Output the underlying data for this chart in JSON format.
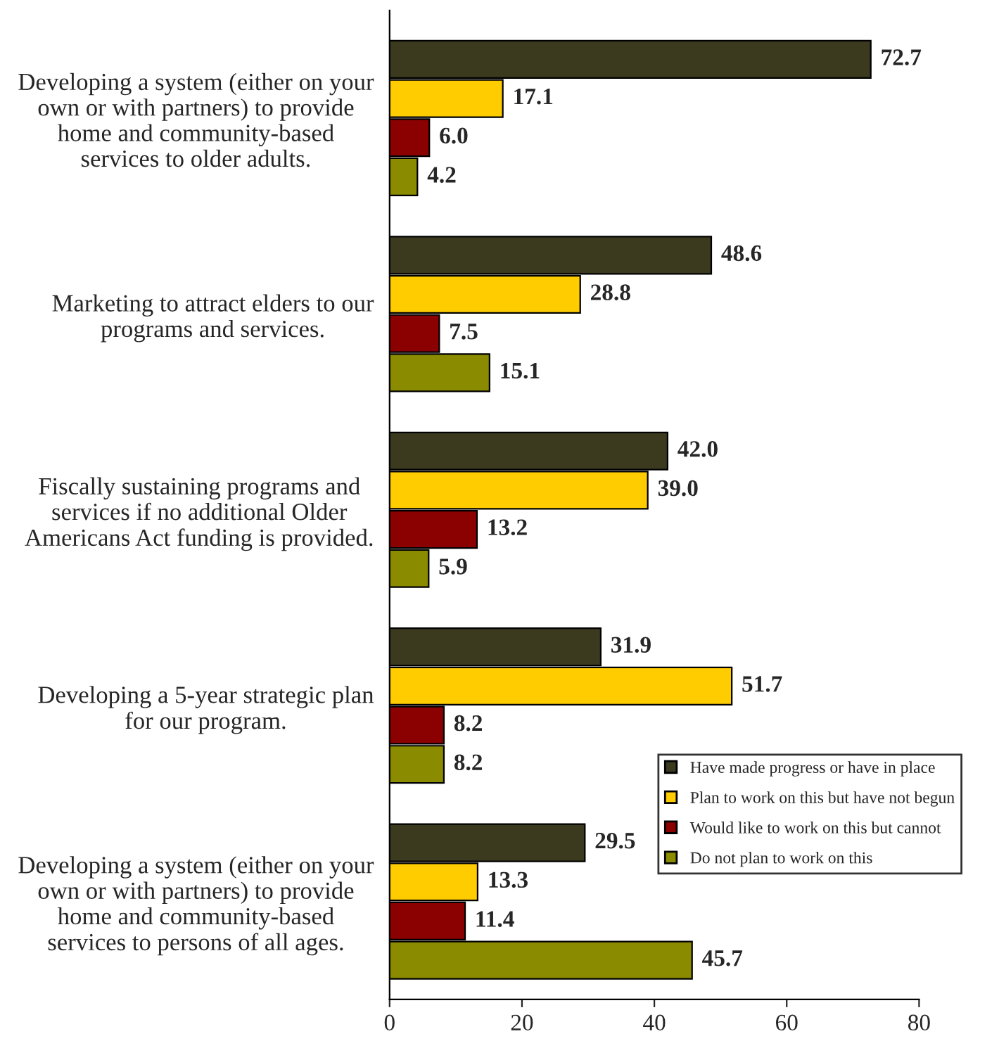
{
  "chart_data": {
    "type": "bar",
    "orientation": "horizontal",
    "categories": [
      "Developing a system (either on your\nown or with partners) to provide\nhome and community-based\nservices to older adults.",
      "Marketing to attract elders to our\nprograms and services.",
      "Fiscally sustaining programs and\nservices if no additional Older\nAmericans Act funding is provided.",
      "Developing a 5-year strategic plan\nfor our program.",
      "Developing a system (either on your\nown or with partners) to provide\nhome and community-based\nservices to persons of all ages."
    ],
    "series": [
      {
        "name": "Have made progress or have in place",
        "color": "#3b3a1e",
        "values": [
          72.7,
          48.6,
          42.0,
          31.9,
          29.5
        ],
        "value_labels": [
          "72.7",
          "48.6",
          "42.0",
          "31.9",
          "29.5"
        ]
      },
      {
        "name": "Plan to work on this but have not begun",
        "color": "#ffcc00",
        "values": [
          17.1,
          28.8,
          39.0,
          51.7,
          13.3
        ],
        "value_labels": [
          "17.1",
          "28.8",
          "39.0",
          "51.7",
          "13.3"
        ]
      },
      {
        "name": "Would like to work on this but cannot",
        "color": "#8b0000",
        "values": [
          6.0,
          7.5,
          13.2,
          8.2,
          11.4
        ],
        "value_labels": [
          "6.0",
          "7.5",
          "13.2",
          "8.2",
          "11.4"
        ]
      },
      {
        "name": "Do not plan to work on this",
        "color": "#8b8b00",
        "values": [
          4.2,
          15.1,
          5.9,
          8.2,
          45.7
        ],
        "value_labels": [
          "4.2",
          "15.1",
          "5.9",
          "8.2",
          "45.7"
        ]
      }
    ],
    "xlim": [
      0,
      80
    ],
    "xticks": [
      0,
      20,
      40,
      60,
      80
    ],
    "legend": "bottom right",
    "grid": false
  }
}
